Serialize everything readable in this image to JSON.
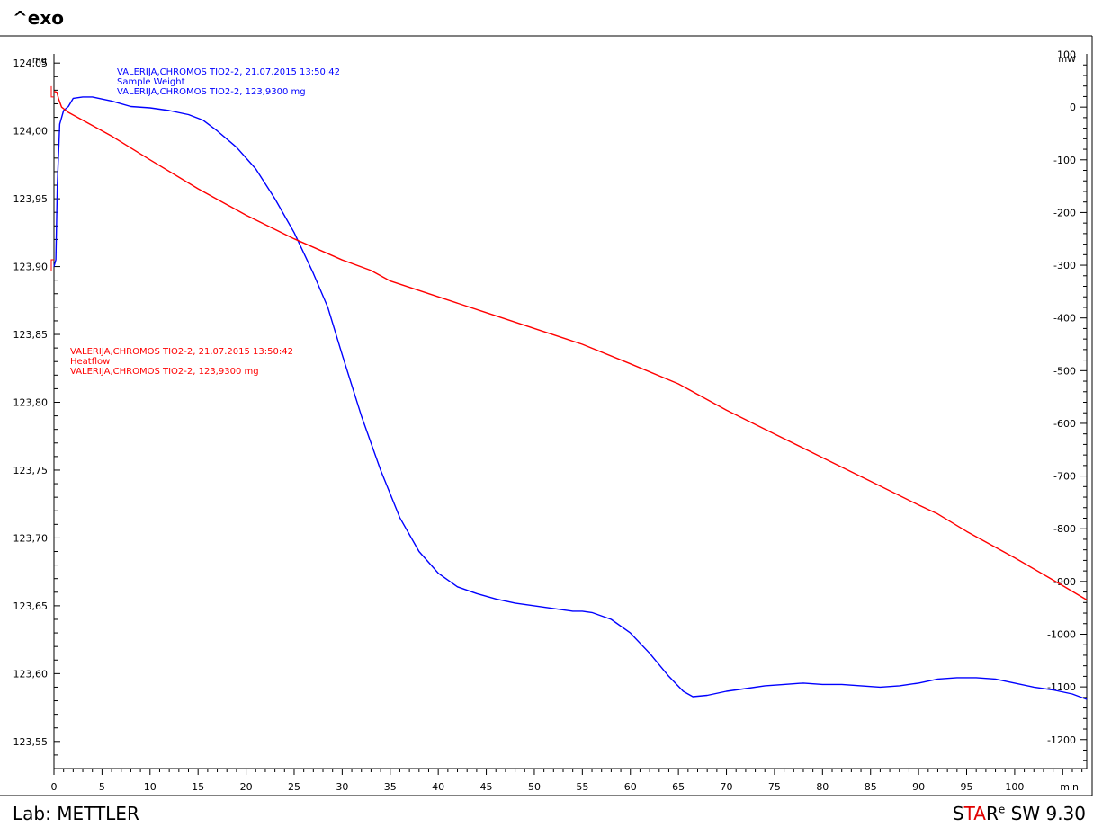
{
  "header": {
    "exo_label": "^exo"
  },
  "footer": {
    "lab_label": "Lab: METTLER",
    "brand_s": "S",
    "brand_ta": "TA",
    "brand_r": "R",
    "brand_sup": "e",
    "brand_version": " SW 9.30"
  },
  "colors": {
    "weight_series": "#0000ff",
    "heatflow_series": "#ff0000",
    "frame": "#000000"
  },
  "chart_data": {
    "type": "line",
    "xlabel": "min",
    "x_ticks": [
      0,
      5,
      10,
      15,
      20,
      25,
      30,
      35,
      40,
      45,
      50,
      55,
      60,
      65,
      70,
      75,
      80,
      85,
      90,
      95,
      100
    ],
    "xlim": [
      0,
      107.5
    ],
    "y_left": {
      "unit": "mg",
      "lim": [
        123.53,
        124.07
      ],
      "ticks": [
        "124,05",
        "124,00",
        "123,95",
        "123,90",
        "123,85",
        "123,80",
        "123,75",
        "123,70",
        "123,65",
        "123,60",
        "123,55"
      ],
      "tick_values": [
        124.05,
        124.0,
        123.95,
        123.9,
        123.85,
        123.8,
        123.75,
        123.7,
        123.65,
        123.6,
        123.55
      ]
    },
    "y_right": {
      "unit": "mW",
      "lim": [
        -1255,
        135
      ],
      "ticks": [
        "100",
        "0",
        "-100",
        "-200",
        "-300",
        "-400",
        "-500",
        "-600",
        "-700",
        "-800",
        "-900",
        "-1000",
        "-1100",
        "-1200"
      ],
      "tick_values": [
        100,
        0,
        -100,
        -200,
        -300,
        -400,
        -500,
        -600,
        -700,
        -800,
        -900,
        -1000,
        -1100,
        -1200
      ]
    },
    "series": [
      {
        "axis": "left",
        "color": "#0000ff",
        "label_lines": [
          "VALERIJA,CHROMOS TIO2-2, 21.07.2015 13:50:42",
          "Sample Weight",
          "VALERIJA,CHROMOS TIO2-2, 123,9300 mg"
        ],
        "points": [
          [
            0.0,
            123.9
          ],
          [
            0.2,
            123.905
          ],
          [
            0.35,
            123.96
          ],
          [
            0.6,
            124.005
          ],
          [
            1.0,
            124.015
          ],
          [
            1.5,
            124.018
          ],
          [
            2.0,
            124.024
          ],
          [
            3.0,
            124.025
          ],
          [
            4.0,
            124.025
          ],
          [
            6.0,
            124.022
          ],
          [
            8.0,
            124.018
          ],
          [
            10.0,
            124.017
          ],
          [
            12.0,
            124.015
          ],
          [
            14.0,
            124.012
          ],
          [
            15.5,
            124.008
          ],
          [
            17.0,
            124.0
          ],
          [
            19.0,
            123.988
          ],
          [
            21.0,
            123.972
          ],
          [
            23.0,
            123.95
          ],
          [
            25.0,
            123.925
          ],
          [
            27.0,
            123.895
          ],
          [
            28.5,
            123.87
          ],
          [
            30.0,
            123.835
          ],
          [
            32.0,
            123.79
          ],
          [
            34.0,
            123.75
          ],
          [
            36.0,
            123.715
          ],
          [
            38.0,
            123.69
          ],
          [
            40.0,
            123.674
          ],
          [
            42.0,
            123.664
          ],
          [
            44.0,
            123.659
          ],
          [
            46.0,
            123.655
          ],
          [
            48.0,
            123.652
          ],
          [
            50.0,
            123.65
          ],
          [
            52.0,
            123.648
          ],
          [
            54.0,
            123.646
          ],
          [
            55.0,
            123.646
          ],
          [
            56.0,
            123.645
          ],
          [
            58.0,
            123.64
          ],
          [
            60.0,
            123.63
          ],
          [
            62.0,
            123.615
          ],
          [
            64.0,
            123.598
          ],
          [
            65.5,
            123.587
          ],
          [
            66.5,
            123.583
          ],
          [
            68.0,
            123.584
          ],
          [
            70.0,
            123.587
          ],
          [
            72.0,
            123.589
          ],
          [
            74.0,
            123.591
          ],
          [
            76.0,
            123.592
          ],
          [
            78.0,
            123.593
          ],
          [
            80.0,
            123.592
          ],
          [
            82.0,
            123.592
          ],
          [
            84.0,
            123.591
          ],
          [
            86.0,
            123.59
          ],
          [
            88.0,
            123.591
          ],
          [
            90.0,
            123.593
          ],
          [
            92.0,
            123.596
          ],
          [
            94.0,
            123.597
          ],
          [
            96.0,
            123.597
          ],
          [
            98.0,
            123.596
          ],
          [
            100.0,
            123.593
          ],
          [
            102.0,
            123.59
          ],
          [
            104.0,
            123.588
          ],
          [
            106.0,
            123.585
          ],
          [
            107.5,
            123.581
          ]
        ]
      },
      {
        "axis": "right",
        "color": "#ff0000",
        "label_lines": [
          "VALERIJA,CHROMOS TIO2-2, 21.07.2015 13:50:42",
          "Heatflow",
          "VALERIJA,CHROMOS TIO2-2, 123,9300 mg"
        ],
        "points": [
          [
            0.0,
            30
          ],
          [
            0.3,
            28
          ],
          [
            0.5,
            15
          ],
          [
            0.8,
            0
          ],
          [
            1.5,
            -10
          ],
          [
            3.0,
            -25
          ],
          [
            6.0,
            -55
          ],
          [
            10.0,
            -100
          ],
          [
            15.0,
            -155
          ],
          [
            20.0,
            -205
          ],
          [
            25.0,
            -250
          ],
          [
            30.0,
            -290
          ],
          [
            33.0,
            -310
          ],
          [
            35.0,
            -330
          ],
          [
            40.0,
            -360
          ],
          [
            45.0,
            -390
          ],
          [
            50.0,
            -420
          ],
          [
            55.0,
            -450
          ],
          [
            60.0,
            -487
          ],
          [
            65.0,
            -525
          ],
          [
            70.0,
            -575
          ],
          [
            75.0,
            -620
          ],
          [
            80.0,
            -665
          ],
          [
            85.0,
            -710
          ],
          [
            90.0,
            -755
          ],
          [
            92.0,
            -772
          ],
          [
            95.0,
            -805
          ],
          [
            100.0,
            -855
          ],
          [
            105.0,
            -908
          ],
          [
            107.5,
            -935
          ]
        ]
      }
    ]
  }
}
